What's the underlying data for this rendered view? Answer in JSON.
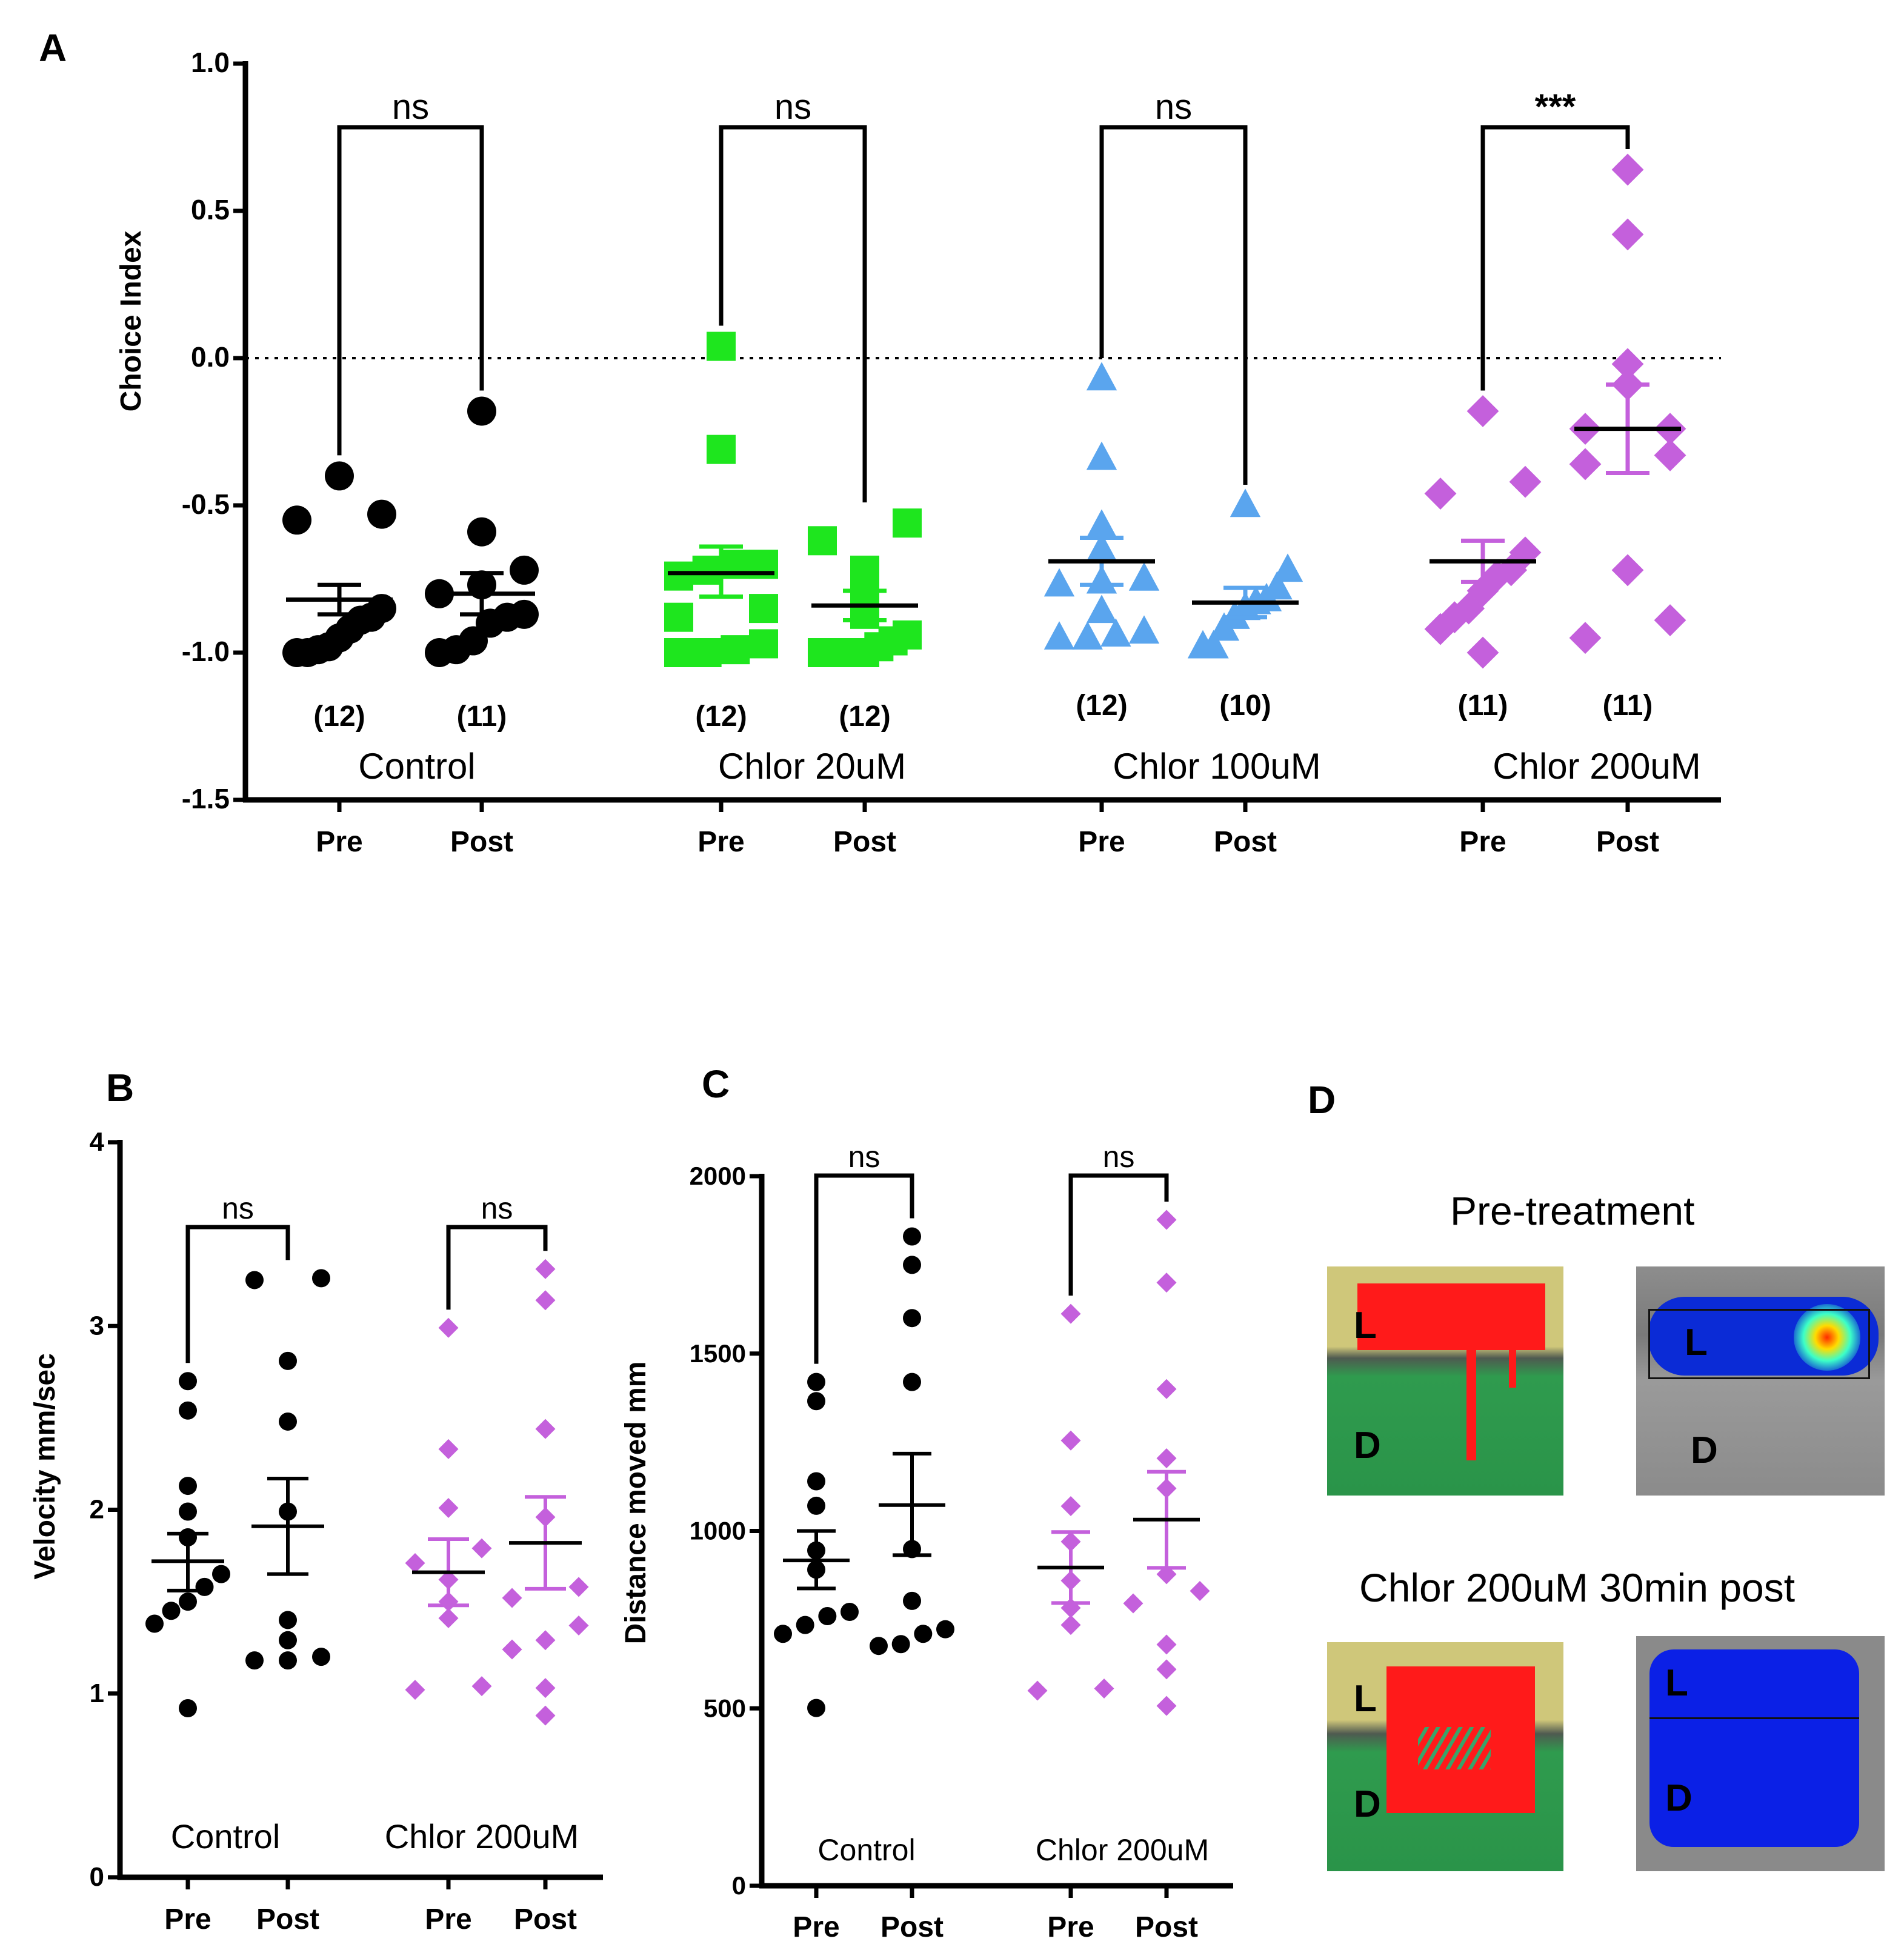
{
  "panel_labels": {
    "a": "A",
    "b": "B",
    "c": "C",
    "d": "D"
  },
  "colors": {
    "black": "#000000",
    "green": "#1ee61e",
    "blue": "#5aa5ee",
    "purple": "#c460dc"
  },
  "chart_data": [
    {
      "panel": "A",
      "type": "scatter",
      "ylabel": "Choice Index",
      "ylim": [
        -1.5,
        1.0
      ],
      "yticks": [
        "1.0",
        "0.5",
        "0.0",
        "-0.5",
        "-1.0",
        "-1.5"
      ],
      "reference_line": 0.0,
      "groups": [
        {
          "name": "Control",
          "marker": "circle",
          "color": "#000000",
          "significance": "ns",
          "series": [
            {
              "name": "Pre",
              "n_label": "(12)",
              "mean": -0.82,
              "sem_low": -0.87,
              "sem_high": -0.77,
              "values": [
                -0.4,
                -0.53,
                -0.55,
                -0.85,
                -0.88,
                -0.89,
                -0.92,
                -0.95,
                -0.98,
                -0.99,
                -1.0,
                -1.0
              ]
            },
            {
              "name": "Post",
              "n_label": "(11)",
              "mean": -0.8,
              "sem_low": -0.87,
              "sem_high": -0.73,
              "values": [
                -0.18,
                -0.59,
                -0.72,
                -0.77,
                -0.8,
                -0.87,
                -0.88,
                -0.9,
                -0.96,
                -0.99,
                -1.0
              ]
            }
          ]
        },
        {
          "name": "Chlor 20uM",
          "marker": "square",
          "color": "#1ee61e",
          "significance": "ns",
          "series": [
            {
              "name": "Pre",
              "n_label": "(12)",
              "mean": -0.73,
              "sem_low": -0.81,
              "sem_high": -0.64,
              "values": [
                0.04,
                -0.31,
                -0.7,
                -0.7,
                -0.72,
                -0.74,
                -0.85,
                -0.88,
                -0.97,
                -0.99,
                -1.0,
                -1.0
              ]
            },
            {
              "name": "Post",
              "n_label": "(12)",
              "mean": -0.84,
              "sem_low": -0.89,
              "sem_high": -0.79,
              "values": [
                -0.56,
                -0.62,
                -0.72,
                -0.8,
                -0.87,
                -0.94,
                -0.96,
                -0.98,
                -1.0,
                -1.0,
                -1.0,
                -1.0
              ]
            }
          ]
        },
        {
          "name": "Chlor 100uM",
          "marker": "triangle",
          "color": "#5aa5ee",
          "significance": "ns",
          "series": [
            {
              "name": "Pre",
              "n_label": "(12)",
              "mean": -0.69,
              "sem_low": -0.77,
              "sem_high": -0.61,
              "values": [
                -0.07,
                -0.34,
                -0.57,
                -0.65,
                -0.75,
                -0.76,
                -0.77,
                -0.86,
                -0.93,
                -0.94,
                -0.95,
                -0.95
              ]
            },
            {
              "name": "Post",
              "n_label": "(10)",
              "mean": -0.83,
              "sem_low": -0.88,
              "sem_high": -0.78,
              "values": [
                -0.5,
                -0.72,
                -0.78,
                -0.82,
                -0.83,
                -0.85,
                -0.88,
                -0.92,
                -0.98,
                -0.98
              ]
            }
          ]
        },
        {
          "name": "Chlor 200uM",
          "marker": "diamond",
          "color": "#c460dc",
          "significance": "***",
          "series": [
            {
              "name": "Pre",
              "n_label": "(11)",
              "mean": -0.69,
              "sem_low": -0.76,
              "sem_high": -0.62,
              "values": [
                -0.18,
                -0.42,
                -0.46,
                -0.66,
                -0.72,
                -0.74,
                -0.79,
                -0.85,
                -0.88,
                -0.92,
                -1.0
              ]
            },
            {
              "name": "Post",
              "n_label": "(11)",
              "mean": -0.24,
              "sem_low": -0.39,
              "sem_high": -0.09,
              "values": [
                0.64,
                0.42,
                -0.02,
                -0.09,
                -0.24,
                -0.24,
                -0.33,
                -0.36,
                -0.72,
                -0.89,
                -0.95
              ]
            }
          ]
        }
      ]
    },
    {
      "panel": "B",
      "type": "scatter",
      "ylabel": "Velocity mm/sec",
      "ylim": [
        0,
        4
      ],
      "yticks": [
        "4",
        "3",
        "2",
        "1",
        "0"
      ],
      "groups": [
        {
          "name": "Control",
          "marker": "circle",
          "color": "#000000",
          "significance": "ns",
          "series": [
            {
              "name": "Pre",
              "mean": 1.72,
              "sem_low": 1.56,
              "sem_high": 1.87,
              "values": [
                2.7,
                2.54,
                2.13,
                1.99,
                1.85,
                1.65,
                1.58,
                1.5,
                1.45,
                1.38,
                0.92
              ]
            },
            {
              "name": "Post",
              "mean": 1.91,
              "sem_low": 1.65,
              "sem_high": 2.17,
              "values": [
                3.26,
                3.25,
                2.81,
                2.48,
                1.99,
                1.4,
                1.29,
                1.2,
                1.18,
                1.18
              ]
            }
          ]
        },
        {
          "name": "Chlor 200uM",
          "marker": "diamond",
          "color": "#c460dc",
          "significance": "ns",
          "series": [
            {
              "name": "Pre",
              "mean": 1.66,
              "sem_low": 1.48,
              "sem_high": 1.84,
              "values": [
                2.99,
                2.33,
                2.01,
                1.79,
                1.71,
                1.62,
                1.5,
                1.41,
                1.04,
                1.02
              ]
            },
            {
              "name": "Post",
              "mean": 1.82,
              "sem_low": 1.57,
              "sem_high": 2.07,
              "values": [
                3.31,
                3.14,
                2.44,
                1.96,
                1.58,
                1.52,
                1.37,
                1.29,
                1.24,
                1.03,
                0.88
              ]
            }
          ]
        }
      ]
    },
    {
      "panel": "C",
      "type": "scatter",
      "ylabel": "Distance moved mm",
      "ylim": [
        0,
        2000
      ],
      "yticks": [
        "2000",
        "1500",
        "1000",
        "500",
        "0"
      ],
      "groups": [
        {
          "name": "Control",
          "marker": "circle",
          "color": "#000000",
          "significance": "ns",
          "series": [
            {
              "name": "Pre",
              "mean": 917,
              "sem_low": 838,
              "sem_high": 1000,
              "values": [
                1420,
                1366,
                1140,
                1071,
                945,
                891,
                772,
                760,
                735,
                710,
                501
              ]
            },
            {
              "name": "Post",
              "mean": 1073,
              "sem_low": 932,
              "sem_high": 1218,
              "values": [
                1830,
                1750,
                1600,
                1420,
                949,
                803,
                723,
                710,
                681,
                676
              ]
            }
          ]
        },
        {
          "name": "Chlor 200uM",
          "marker": "diamond",
          "color": "#c460dc",
          "significance": "ns",
          "series": [
            {
              "name": "Pre",
              "mean": 897,
              "sem_low": 797,
              "sem_high": 997,
              "values": [
                1612,
                1255,
                1070,
                970,
                860,
                783,
                735,
                556,
                550
              ]
            },
            {
              "name": "Post",
              "mean": 1032,
              "sem_low": 896,
              "sem_high": 1167,
              "values": [
                1877,
                1700,
                1400,
                1205,
                1120,
                878,
                831,
                796,
                680,
                610,
                507
              ]
            }
          ]
        }
      ]
    }
  ],
  "panel_d": {
    "title_top": "Pre-treatment",
    "title_bottom": "Chlor 200uM 30min post",
    "light_label": "L",
    "dark_label": "D"
  }
}
